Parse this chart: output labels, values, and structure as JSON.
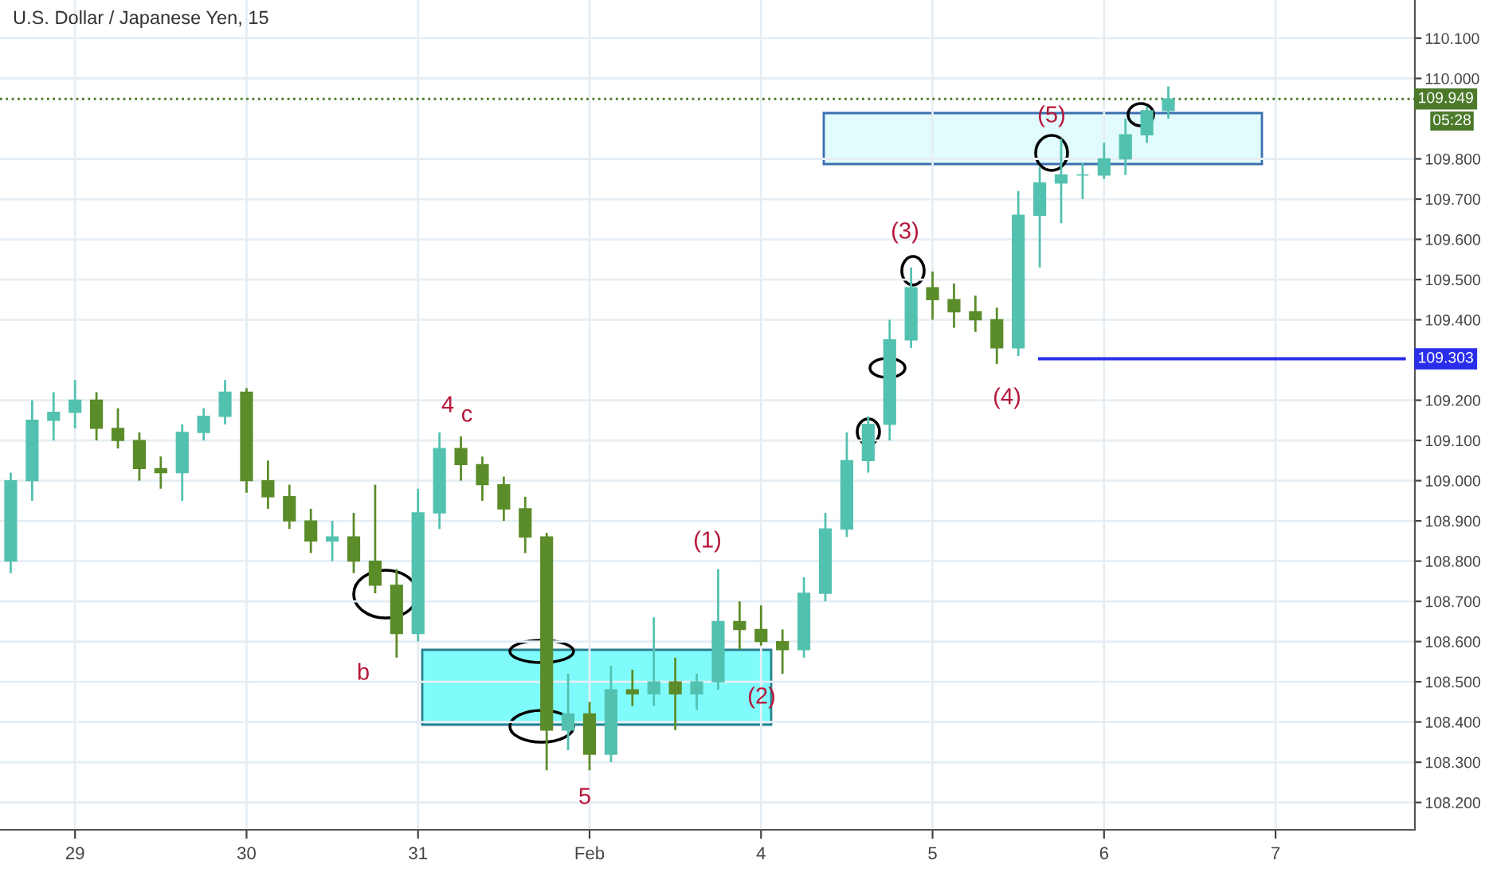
{
  "chart_data": {
    "type": "candlestick",
    "title": "U.S. Dollar / Japanese Yen, 15",
    "categories": [
      null,
      null,
      null,
      "29",
      null,
      null,
      null,
      null,
      null,
      null,
      null,
      "30",
      null,
      null,
      null,
      null,
      null,
      null,
      null,
      "31",
      null,
      null,
      null,
      null,
      null,
      null,
      null,
      "Feb",
      null,
      null,
      null,
      null,
      null,
      null,
      null,
      "4",
      null,
      null,
      null,
      null,
      null,
      null,
      null,
      "5",
      null,
      null,
      null,
      null,
      null,
      null,
      null,
      "6",
      null,
      null,
      null,
      null,
      null,
      null,
      null,
      "7",
      null,
      null,
      null,
      null,
      null,
      null
    ],
    "ohlc": [
      [
        108.8,
        109.02,
        108.77,
        109.0
      ],
      [
        109.0,
        109.2,
        108.95,
        109.15
      ],
      [
        109.15,
        109.22,
        109.1,
        109.17
      ],
      [
        109.17,
        109.25,
        109.13,
        109.2
      ],
      [
        109.2,
        109.22,
        109.1,
        109.13
      ],
      [
        109.13,
        109.18,
        109.08,
        109.1
      ],
      [
        109.1,
        109.12,
        109.0,
        109.03
      ],
      [
        109.03,
        109.06,
        108.98,
        109.02
      ],
      [
        109.02,
        109.14,
        108.95,
        109.12
      ],
      [
        109.12,
        109.18,
        109.1,
        109.16
      ],
      [
        109.16,
        109.25,
        109.14,
        109.22
      ],
      [
        109.22,
        109.23,
        108.97,
        109.0
      ],
      [
        109.0,
        109.05,
        108.93,
        108.96
      ],
      [
        108.96,
        108.99,
        108.88,
        108.9
      ],
      [
        108.9,
        108.93,
        108.82,
        108.85
      ],
      [
        108.85,
        108.9,
        108.8,
        108.86
      ],
      [
        108.86,
        108.92,
        108.77,
        108.8
      ],
      [
        108.8,
        108.99,
        108.72,
        108.74
      ],
      [
        108.74,
        108.78,
        108.56,
        108.62
      ],
      [
        108.62,
        108.98,
        108.6,
        108.92
      ],
      [
        108.92,
        109.12,
        108.88,
        109.08
      ],
      [
        109.08,
        109.11,
        109.0,
        109.04
      ],
      [
        109.04,
        109.06,
        108.95,
        108.99
      ],
      [
        108.99,
        109.01,
        108.9,
        108.93
      ],
      [
        108.93,
        108.96,
        108.82,
        108.86
      ],
      [
        108.86,
        108.87,
        108.28,
        108.38
      ],
      [
        108.38,
        108.52,
        108.33,
        108.42
      ],
      [
        108.42,
        108.45,
        108.28,
        108.32
      ],
      [
        108.32,
        108.54,
        108.3,
        108.48
      ],
      [
        108.48,
        108.53,
        108.44,
        108.47
      ],
      [
        108.47,
        108.66,
        108.44,
        108.5
      ],
      [
        108.5,
        108.56,
        108.38,
        108.47
      ],
      [
        108.47,
        108.52,
        108.43,
        108.5
      ],
      [
        108.5,
        108.78,
        108.48,
        108.65
      ],
      [
        108.65,
        108.7,
        108.58,
        108.63
      ],
      [
        108.63,
        108.69,
        108.59,
        108.6
      ],
      [
        108.6,
        108.63,
        108.52,
        108.58
      ],
      [
        108.58,
        108.76,
        108.56,
        108.72
      ],
      [
        108.72,
        108.92,
        108.7,
        108.88
      ],
      [
        108.88,
        109.12,
        108.86,
        109.05
      ],
      [
        109.05,
        109.16,
        109.02,
        109.14
      ],
      [
        109.14,
        109.4,
        109.1,
        109.35
      ],
      [
        109.35,
        109.53,
        109.33,
        109.48
      ],
      [
        109.48,
        109.52,
        109.4,
        109.45
      ],
      [
        109.45,
        109.49,
        109.38,
        109.42
      ],
      [
        109.42,
        109.46,
        109.37,
        109.4
      ],
      [
        109.4,
        109.43,
        109.29,
        109.33
      ],
      [
        109.33,
        109.72,
        109.31,
        109.66
      ],
      [
        109.66,
        109.78,
        109.53,
        109.74
      ],
      [
        109.74,
        109.85,
        109.64,
        109.76
      ],
      [
        109.76,
        109.79,
        109.7,
        109.76
      ],
      [
        109.76,
        109.84,
        109.75,
        109.8
      ],
      [
        109.8,
        109.9,
        109.76,
        109.86
      ],
      [
        109.86,
        109.93,
        109.84,
        109.92
      ],
      [
        109.92,
        109.98,
        109.9,
        109.949
      ],
      null,
      null,
      null,
      null,
      null,
      null,
      null,
      null,
      null,
      null,
      null
    ],
    "colors": [
      "#53c1b0",
      "#53c1b0",
      "#53c1b0",
      "#53c1b0",
      "#5b8c2a",
      "#5b8c2a",
      "#5b8c2a",
      "#5b8c2a",
      "#53c1b0",
      "#53c1b0",
      "#53c1b0",
      "#5b8c2a",
      "#5b8c2a",
      "#5b8c2a",
      "#5b8c2a",
      "#53c1b0",
      "#5b8c2a",
      "#5b8c2a",
      "#5b8c2a",
      "#53c1b0",
      "#53c1b0",
      "#5b8c2a",
      "#5b8c2a",
      "#5b8c2a",
      "#5b8c2a",
      "#5b8c2a",
      "#53c1b0",
      "#5b8c2a",
      "#53c1b0",
      "#5b8c2a",
      "#53c1b0",
      "#5b8c2a",
      "#53c1b0",
      "#53c1b0",
      "#5b8c2a",
      "#5b8c2a",
      "#5b8c2a",
      "#53c1b0",
      "#53c1b0",
      "#53c1b0",
      "#53c1b0",
      "#53c1b0",
      "#53c1b0",
      "#5b8c2a",
      "#5b8c2a",
      "#5b8c2a",
      "#5b8c2a",
      "#53c1b0",
      "#53c1b0",
      "#53c1b0",
      "#53c1b0",
      "#53c1b0",
      "#53c1b0",
      "#53c1b0",
      "#53c1b0",
      null,
      null,
      null,
      null,
      null,
      null,
      null,
      null,
      null,
      null,
      null
    ],
    "series": [
      {
        "type": "line",
        "color": "#2a2eec",
        "values": [
          null,
          null,
          null,
          null,
          null,
          null,
          null,
          null,
          null,
          null,
          null,
          null,
          null,
          null,
          null,
          null,
          null,
          null,
          null,
          null,
          null,
          null,
          null,
          null,
          null,
          null,
          null,
          null,
          null,
          null,
          null,
          null,
          null,
          null,
          null,
          null,
          null,
          null,
          null,
          null,
          null,
          null,
          null,
          null,
          null,
          null,
          null,
          null,
          109.303,
          109.303,
          109.303,
          109.303,
          109.303,
          109.303,
          109.303,
          109.303,
          109.303,
          109.303,
          109.303,
          109.303,
          109.303,
          109.303,
          109.303,
          109.303,
          109.303,
          109.303
        ],
        "value_labels": [
          null,
          null,
          null,
          null,
          null,
          null,
          null,
          null,
          null,
          null,
          null,
          null,
          null,
          null,
          null,
          null,
          null,
          null,
          null,
          null,
          null,
          null,
          null,
          null,
          null,
          null,
          null,
          null,
          null,
          null,
          null,
          null,
          null,
          null,
          null,
          null,
          null,
          null,
          null,
          null,
          null,
          null,
          null,
          null,
          null,
          null,
          null,
          null,
          null,
          null,
          null,
          null,
          null,
          null,
          null,
          null,
          null,
          null,
          null,
          null,
          null,
          null,
          null,
          null,
          null,
          "109.303"
        ]
      }
    ],
    "ref_lines": [
      {
        "axis": "y",
        "value": 109.949,
        "label": "109.949",
        "color": "#4c7a2a",
        "line_style": "dotted"
      }
    ],
    "annotations": [
      "(1)",
      "(2)",
      "(3)",
      "(4)",
      "(5)",
      "4",
      "c",
      "b",
      "5",
      "05:28"
    ],
    "ylim": [
      108.132,
      110.195
    ],
    "yticks": [
      {
        "value": 108.2,
        "label": "108.200"
      },
      {
        "value": 108.3,
        "label": "108.300"
      },
      {
        "value": 108.4,
        "label": "108.400"
      },
      {
        "value": 108.5,
        "label": "108.500"
      },
      {
        "value": 108.6,
        "label": "108.600"
      },
      {
        "value": 108.7,
        "label": "108.700"
      },
      {
        "value": 108.8,
        "label": "108.800"
      },
      {
        "value": 108.9,
        "label": "108.900"
      },
      {
        "value": 109.0,
        "label": "109.000"
      },
      {
        "value": 109.1,
        "label": "109.100"
      },
      {
        "value": 109.2,
        "label": "109.200"
      },
      {
        "value": 109.4,
        "label": "109.400"
      },
      {
        "value": 109.5,
        "label": "109.500"
      },
      {
        "value": 109.6,
        "label": "109.600"
      },
      {
        "value": 109.7,
        "label": "109.700"
      },
      {
        "value": 109.8,
        "label": "109.800"
      },
      {
        "value": 110.0,
        "label": "110.000"
      },
      {
        "value": 110.1,
        "label": "110.100"
      }
    ],
    "grid": true
  }
}
